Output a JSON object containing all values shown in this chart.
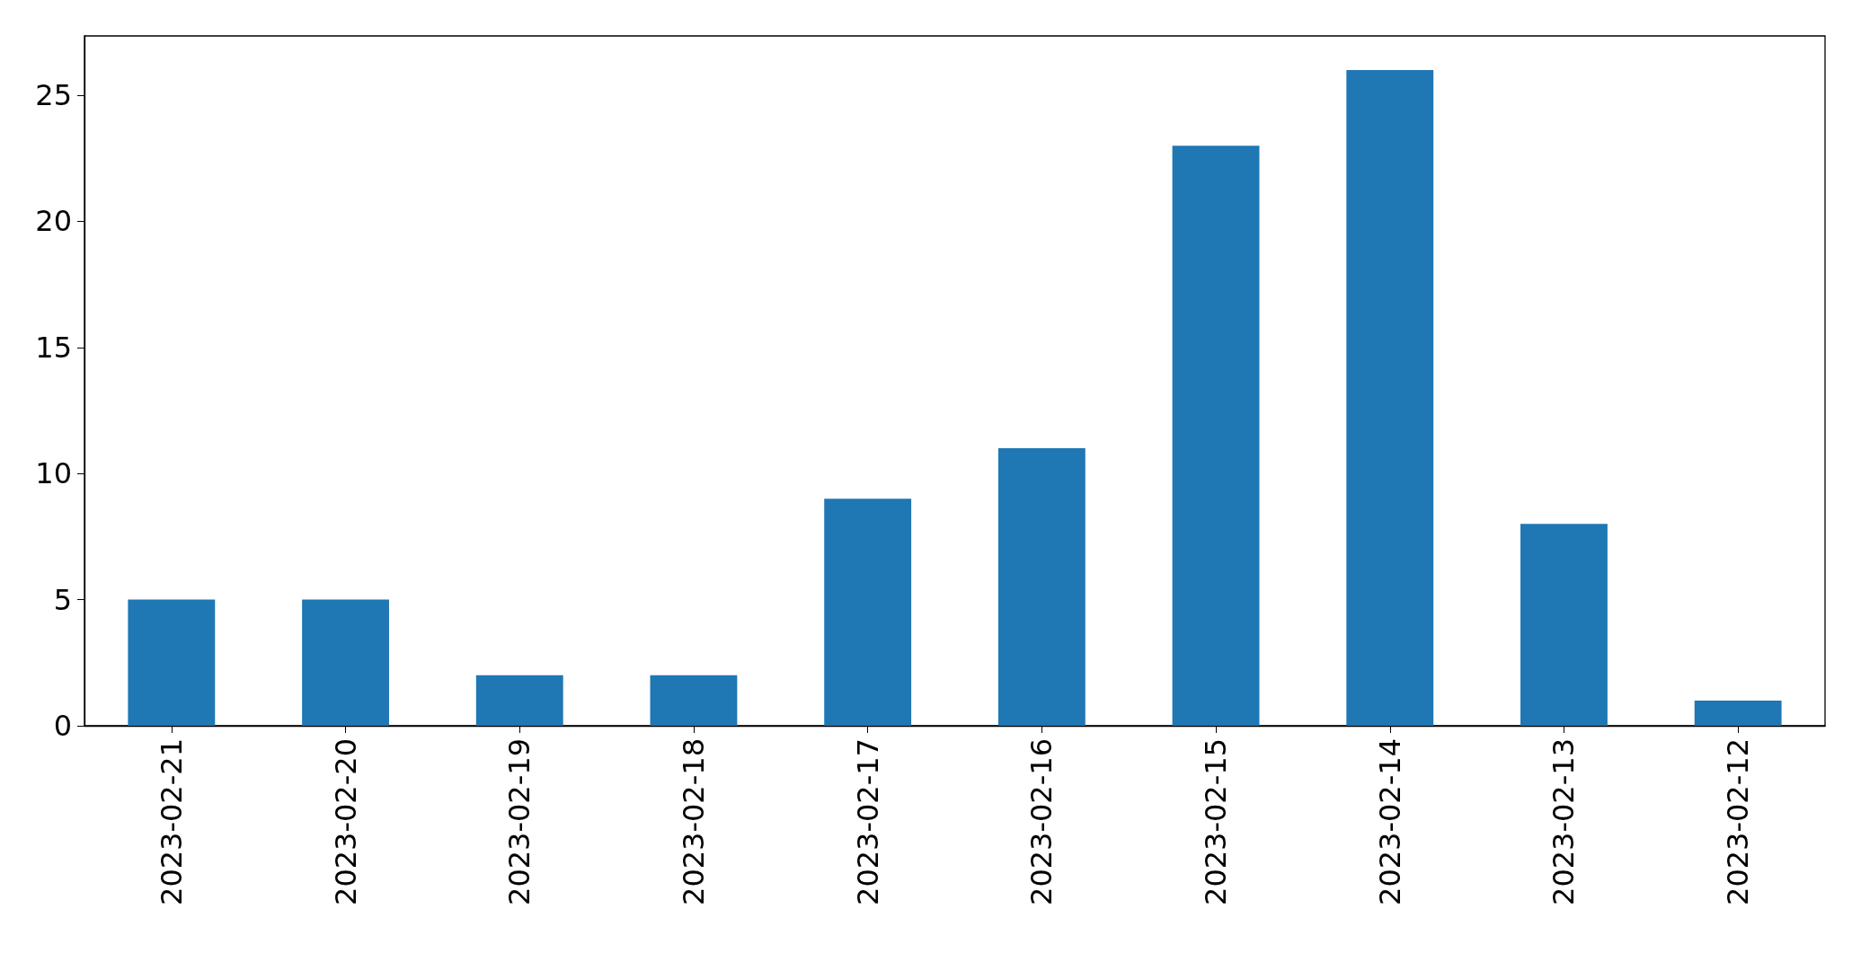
{
  "chart_data": {
    "type": "bar",
    "categories": [
      "2023-02-21",
      "2023-02-20",
      "2023-02-19",
      "2023-02-18",
      "2023-02-17",
      "2023-02-16",
      "2023-02-15",
      "2023-02-14",
      "2023-02-13",
      "2023-02-12"
    ],
    "values": [
      5,
      5,
      2,
      2,
      9,
      11,
      23,
      26,
      8,
      1
    ],
    "color": "#1f77b4",
    "ylim": [
      0,
      27.35
    ],
    "yticks": [
      0,
      5,
      10,
      15,
      20,
      25
    ],
    "grid": false
  }
}
